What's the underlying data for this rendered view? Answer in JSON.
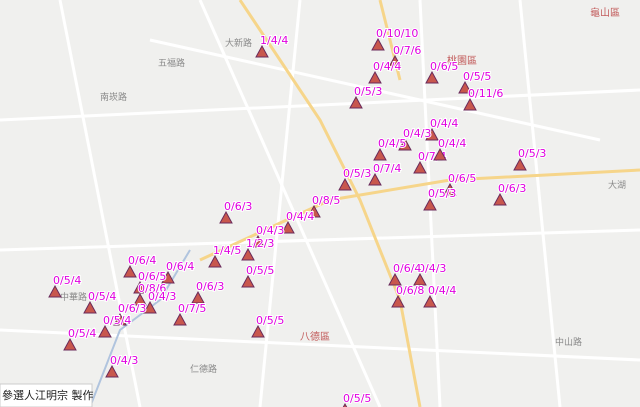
{
  "credit": "參選人江明宗 製作",
  "places": [
    "大新路",
    "五福路",
    "桃園區",
    "龜山區",
    "八德區",
    "中山路",
    "中華路",
    "大湖",
    "仁德路",
    "南崁路"
  ],
  "markers": [
    "1/4/4",
    "0/10/10",
    "0/7/6",
    "0/4/4",
    "0/6/5",
    "0/5/5",
    "0/5/3",
    "0/11/6",
    "0/4/4",
    "0/4/3",
    "0/4/5",
    "0/7/4",
    "0/5/3",
    "0/6/5",
    "0/8/5",
    "0/6/3",
    "0/4/4",
    "0/4/3",
    "1/2/3",
    "1/4/5",
    "0/5/5",
    "0/6/4",
    "0/6/4",
    "0/6/5",
    "0/5/4",
    "0/6/3",
    "0/7/5",
    "0/5/4",
    "0/5/5",
    "0/4/3",
    "0/6/3",
    "0/5/3",
    "0/4/3",
    "0/6/8",
    "0/4/4",
    "0/5/5",
    "0/8/6",
    "0/5/4",
    "0/4/3",
    "0/6/3",
    "0/5/4",
    "0/7/4",
    "0/5/3",
    "0/4/4",
    "0/6/4"
  ]
}
